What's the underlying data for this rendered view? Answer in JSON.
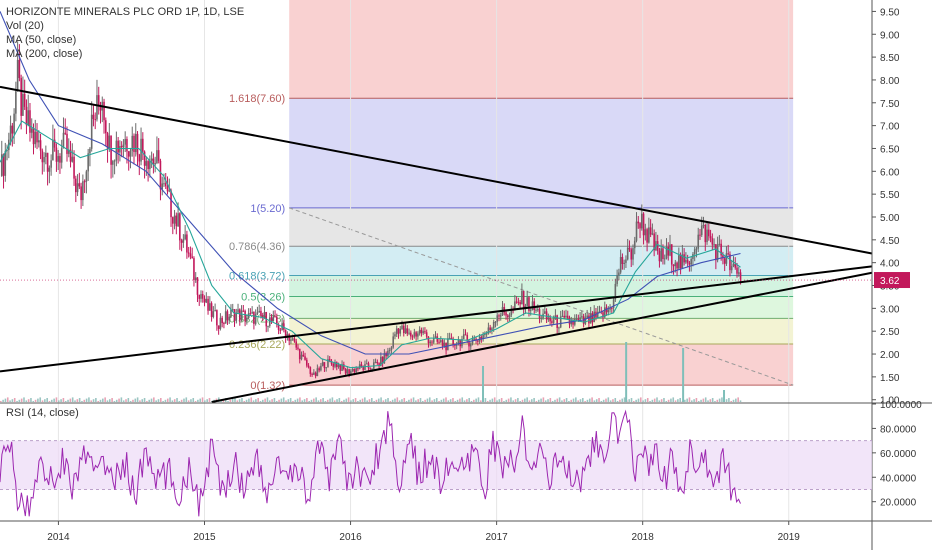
{
  "legend": {
    "title": "HORIZONTE MINERALS PLC ORD 1P, 1D, LSE",
    "vol": "Vol (20)",
    "ma50": "MA (50, close)",
    "ma200": "MA (200, close)"
  },
  "rsi_legend": "RSI (14, close)",
  "colors": {
    "up_candle": "#6a6a6a",
    "down_candle": "#c2185b",
    "ma50": "#26a69a",
    "ma200": "#3f51b5",
    "rsi_line": "#9c27b0",
    "rsi_band": "#ecdaf7",
    "trendline": "#000000",
    "last_price_tag": "#c2185b"
  },
  "chart_data": [
    {
      "type": "candlestick",
      "title": "HORIZONTE MINERALS PLC ORD 1P, 1D, LSE",
      "x_ticks": [
        "2014",
        "2015",
        "2016",
        "2017",
        "2018",
        "2019"
      ],
      "x_tick_years": [
        2014.0,
        2015.0,
        2016.0,
        2017.0,
        2018.0,
        2019.0
      ],
      "x_range": [
        2013.6,
        2019.57
      ],
      "y_range": [
        0.95,
        9.75
      ],
      "y_ticks": [
        "1.00",
        "1.50",
        "2.00",
        "2.50",
        "3.00",
        "3.50",
        "4.00",
        "4.50",
        "5.00",
        "5.50",
        "6.00",
        "6.50",
        "7.00",
        "7.50",
        "8.00",
        "8.50",
        "9.00",
        "9.50"
      ],
      "y_tick_values": [
        1.0,
        1.5,
        2.0,
        2.5,
        3.0,
        3.5,
        4.0,
        4.5,
        5.0,
        5.5,
        6.0,
        6.5,
        7.0,
        7.5,
        8.0,
        8.5,
        9.0,
        9.5
      ],
      "last_price": "3.62",
      "last_price_value": 3.62,
      "price_path": [
        [
          2013.6,
          5.9
        ],
        [
          2013.68,
          7.0
        ],
        [
          2013.72,
          8.0
        ],
        [
          2013.76,
          7.2
        ],
        [
          2013.85,
          6.6
        ],
        [
          2013.95,
          6.3
        ],
        [
          2014.05,
          6.5
        ],
        [
          2014.15,
          5.4
        ],
        [
          2014.22,
          6.9
        ],
        [
          2014.3,
          7.7
        ],
        [
          2014.35,
          6.5
        ],
        [
          2014.45,
          6.7
        ],
        [
          2014.52,
          6.7
        ],
        [
          2014.6,
          6.4
        ],
        [
          2014.67,
          6.2
        ],
        [
          2014.72,
          5.6
        ],
        [
          2014.8,
          5.0
        ],
        [
          2014.88,
          4.3
        ],
        [
          2014.95,
          3.5
        ],
        [
          2015.02,
          3.0
        ],
        [
          2015.1,
          2.7
        ],
        [
          2015.2,
          2.9
        ],
        [
          2015.3,
          2.8
        ],
        [
          2015.4,
          2.8
        ],
        [
          2015.47,
          2.7
        ],
        [
          2015.55,
          2.5
        ],
        [
          2015.6,
          2.3
        ],
        [
          2015.67,
          1.9
        ],
        [
          2015.75,
          1.5
        ],
        [
          2015.82,
          1.8
        ],
        [
          2015.9,
          1.8
        ],
        [
          2015.97,
          1.6
        ],
        [
          2016.05,
          1.7
        ],
        [
          2016.12,
          1.7
        ],
        [
          2016.2,
          1.8
        ],
        [
          2016.27,
          2.1
        ],
        [
          2016.32,
          2.6
        ],
        [
          2016.4,
          2.4
        ],
        [
          2016.48,
          2.5
        ],
        [
          2016.55,
          2.3
        ],
        [
          2016.65,
          2.2
        ],
        [
          2016.75,
          2.3
        ],
        [
          2016.85,
          2.3
        ],
        [
          2016.95,
          2.5
        ],
        [
          2017.0,
          2.9
        ],
        [
          2017.1,
          2.9
        ],
        [
          2017.17,
          3.2
        ],
        [
          2017.25,
          3.0
        ],
        [
          2017.32,
          2.8
        ],
        [
          2017.4,
          2.7
        ],
        [
          2017.5,
          2.7
        ],
        [
          2017.6,
          2.7
        ],
        [
          2017.7,
          2.8
        ],
        [
          2017.78,
          3.0
        ],
        [
          2017.85,
          4.0
        ],
        [
          2017.92,
          4.2
        ],
        [
          2017.98,
          5.0
        ],
        [
          2018.05,
          4.5
        ],
        [
          2018.12,
          4.1
        ],
        [
          2018.2,
          4.2
        ],
        [
          2018.25,
          4.0
        ],
        [
          2018.3,
          3.9
        ],
        [
          2018.35,
          4.4
        ],
        [
          2018.42,
          4.7
        ],
        [
          2018.5,
          4.3
        ],
        [
          2018.57,
          4.1
        ],
        [
          2018.62,
          3.8
        ],
        [
          2018.67,
          3.7
        ]
      ],
      "ma50_path": [
        [
          2013.6,
          6.2
        ],
        [
          2013.75,
          7.1
        ],
        [
          2013.95,
          6.7
        ],
        [
          2014.15,
          6.3
        ],
        [
          2014.35,
          6.5
        ],
        [
          2014.55,
          6.5
        ],
        [
          2014.72,
          5.9
        ],
        [
          2014.9,
          4.7
        ],
        [
          2015.05,
          3.5
        ],
        [
          2015.2,
          2.9
        ],
        [
          2015.4,
          2.8
        ],
        [
          2015.6,
          2.5
        ],
        [
          2015.8,
          1.9
        ],
        [
          2016.0,
          1.7
        ],
        [
          2016.2,
          1.75
        ],
        [
          2016.35,
          2.2
        ],
        [
          2016.55,
          2.35
        ],
        [
          2016.8,
          2.3
        ],
        [
          2017.0,
          2.55
        ],
        [
          2017.2,
          2.9
        ],
        [
          2017.4,
          2.8
        ],
        [
          2017.6,
          2.7
        ],
        [
          2017.8,
          2.9
        ],
        [
          2017.95,
          3.8
        ],
        [
          2018.1,
          4.4
        ],
        [
          2018.3,
          4.1
        ],
        [
          2018.5,
          4.3
        ],
        [
          2018.67,
          3.9
        ]
      ],
      "ma200_path": [
        [
          2013.6,
          9.5
        ],
        [
          2013.8,
          8.0
        ],
        [
          2014.0,
          7.0
        ],
        [
          2014.3,
          6.6
        ],
        [
          2014.6,
          6.0
        ],
        [
          2014.9,
          4.9
        ],
        [
          2015.2,
          3.8
        ],
        [
          2015.5,
          3.0
        ],
        [
          2015.8,
          2.4
        ],
        [
          2016.1,
          2.0
        ],
        [
          2016.4,
          2.0
        ],
        [
          2016.7,
          2.2
        ],
        [
          2017.0,
          2.4
        ],
        [
          2017.3,
          2.6
        ],
        [
          2017.6,
          2.75
        ],
        [
          2017.9,
          3.2
        ],
        [
          2018.1,
          3.7
        ],
        [
          2018.4,
          4.0
        ],
        [
          2018.67,
          4.2
        ]
      ],
      "volume_spikes": [
        [
          2016.9,
          0.6
        ],
        [
          2017.88,
          1.0
        ],
        [
          2018.27,
          0.9
        ],
        [
          2018.55,
          0.2
        ]
      ],
      "fibonacci": {
        "x_start": 2015.58,
        "x_end": 2019.03,
        "levels": [
          {
            "ratio": 0,
            "price": 1.32,
            "label": "0(1.32)",
            "fill": "#f7c6c6"
          },
          {
            "ratio": 0.236,
            "price": 2.22,
            "label": "0.236(2.22)",
            "fill": "#f0f0c8"
          },
          {
            "ratio": 0.382,
            "price": 2.78,
            "label": "0.382(2.78)",
            "fill": "#d6f5d6"
          },
          {
            "ratio": 0.5,
            "price": 3.26,
            "label": "0.5(3.26)",
            "fill": "#c8f0d8"
          },
          {
            "ratio": 0.618,
            "price": 3.72,
            "label": "0.618(3.72)",
            "fill": "#c8e8f0"
          },
          {
            "ratio": 0.786,
            "price": 4.36,
            "label": "0.786(4.36)",
            "fill": "#e0e0e0"
          },
          {
            "ratio": 1,
            "price": 5.2,
            "label": "1(5.20)",
            "fill": "#d0d0f5"
          },
          {
            "ratio": 1.618,
            "price": 7.6,
            "label": "1.618(7.60)",
            "fill": "#f7c6c6"
          }
        ],
        "top_fill_to": 9.75,
        "diagonal": [
          [
            2015.58,
            5.2
          ],
          [
            2019.03,
            1.32
          ]
        ]
      },
      "trendlines": [
        {
          "name": "upper-down",
          "from": [
            2013.6,
            7.85
          ],
          "to": [
            2019.57,
            4.2
          ]
        },
        {
          "name": "lower-up",
          "from": [
            2013.6,
            1.62
          ],
          "to": [
            2019.57,
            3.92
          ]
        },
        {
          "name": "support-up",
          "from": [
            2015.05,
            0.95
          ],
          "to": [
            2019.57,
            3.78
          ]
        }
      ]
    },
    {
      "type": "line",
      "title": "RSI (14, close)",
      "y_ticks": [
        "20.0000",
        "40.0000",
        "60.0000",
        "80.0000",
        "100.0000"
      ],
      "y_tick_values": [
        20,
        40,
        60,
        80,
        100
      ],
      "y_range": [
        5,
        100
      ],
      "band": [
        30,
        70
      ],
      "rsi_path": [
        [
          2013.6,
          50
        ],
        [
          2013.67,
          65
        ],
        [
          2013.72,
          25
        ],
        [
          2013.8,
          10
        ],
        [
          2013.88,
          60
        ],
        [
          2013.95,
          35
        ],
        [
          2014.03,
          55
        ],
        [
          2014.1,
          30
        ],
        [
          2014.17,
          60
        ],
        [
          2014.25,
          40
        ],
        [
          2014.3,
          65
        ],
        [
          2014.37,
          30
        ],
        [
          2014.45,
          55
        ],
        [
          2014.52,
          25
        ],
        [
          2014.6,
          60
        ],
        [
          2014.67,
          35
        ],
        [
          2014.75,
          45
        ],
        [
          2014.82,
          25
        ],
        [
          2014.9,
          50
        ],
        [
          2014.97,
          15
        ],
        [
          2015.05,
          65
        ],
        [
          2015.12,
          25
        ],
        [
          2015.2,
          55
        ],
        [
          2015.27,
          30
        ],
        [
          2015.35,
          60
        ],
        [
          2015.42,
          20
        ],
        [
          2015.5,
          55
        ],
        [
          2015.57,
          35
        ],
        [
          2015.65,
          45
        ],
        [
          2015.72,
          25
        ],
        [
          2015.78,
          65
        ],
        [
          2015.85,
          35
        ],
        [
          2015.92,
          80
        ],
        [
          2015.98,
          30
        ],
        [
          2016.05,
          50
        ],
        [
          2016.12,
          35
        ],
        [
          2016.2,
          65
        ],
        [
          2016.27,
          90
        ],
        [
          2016.32,
          35
        ],
        [
          2016.4,
          70
        ],
        [
          2016.47,
          40
        ],
        [
          2016.55,
          60
        ],
        [
          2016.62,
          35
        ],
        [
          2016.7,
          55
        ],
        [
          2016.78,
          40
        ],
        [
          2016.85,
          60
        ],
        [
          2016.92,
          30
        ],
        [
          2016.97,
          70
        ],
        [
          2017.05,
          45
        ],
        [
          2017.12,
          55
        ],
        [
          2017.17,
          85
        ],
        [
          2017.23,
          35
        ],
        [
          2017.3,
          65
        ],
        [
          2017.37,
          40
        ],
        [
          2017.45,
          60
        ],
        [
          2017.52,
          30
        ],
        [
          2017.6,
          45
        ],
        [
          2017.67,
          70
        ],
        [
          2017.73,
          50
        ],
        [
          2017.8,
          85
        ],
        [
          2017.85,
          70
        ],
        [
          2017.9,
          90
        ],
        [
          2017.95,
          40
        ],
        [
          2018.0,
          70
        ],
        [
          2018.05,
          50
        ],
        [
          2018.1,
          60
        ],
        [
          2018.15,
          40
        ],
        [
          2018.2,
          55
        ],
        [
          2018.25,
          35
        ],
        [
          2018.28,
          22
        ],
        [
          2018.33,
          65
        ],
        [
          2018.38,
          50
        ],
        [
          2018.42,
          60
        ],
        [
          2018.48,
          40
        ],
        [
          2018.55,
          50
        ],
        [
          2018.6,
          35
        ],
        [
          2018.67,
          28
        ]
      ]
    }
  ]
}
